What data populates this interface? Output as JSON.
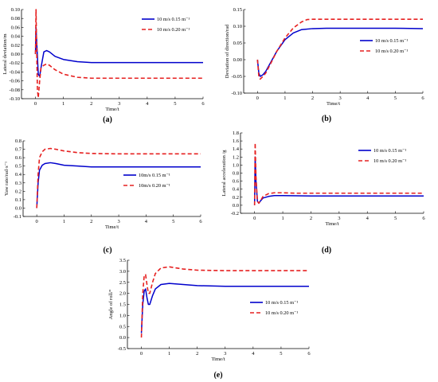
{
  "chart_data": [
    {
      "panel": "(a)",
      "type": "line",
      "xlabel": "Time/t",
      "ylabel": "Lateral deviation/m",
      "xlim": [
        -0.5,
        6
      ],
      "ylim": [
        -0.1,
        0.1
      ],
      "xticks": [
        0,
        1,
        2,
        3,
        4,
        5,
        6
      ],
      "yticks": [
        -0.1,
        -0.08,
        -0.06,
        -0.04,
        -0.02,
        0.0,
        0.02,
        0.04,
        0.06,
        0.08,
        0.1
      ],
      "ytick_labels": [
        "-0.10",
        "-0.08",
        "-0.06",
        "-0.04",
        "-0.02",
        "0.00",
        "0.02",
        "0.04",
        "0.06",
        "0.08",
        "0.10"
      ],
      "legend_pos": "top-right",
      "series": [
        {
          "name": "10 m/s 0.15 m⁻¹",
          "color": "#0000cc",
          "dash": "solid",
          "x": [
            0,
            0.02,
            0.05,
            0.1,
            0.15,
            0.2,
            0.3,
            0.4,
            0.5,
            0.7,
            1.0,
            1.5,
            2,
            3,
            4,
            5,
            6
          ],
          "y": [
            0,
            0.06,
            0.02,
            -0.045,
            -0.05,
            -0.03,
            0.005,
            0.008,
            0.005,
            -0.005,
            -0.012,
            -0.017,
            -0.019,
            -0.019,
            -0.019,
            -0.019,
            -0.019
          ]
        },
        {
          "name": "10 m/s 0.20 m⁻¹",
          "color": "#e62020",
          "dash": "dashed",
          "x": [
            0,
            0.02,
            0.04,
            0.07,
            0.1,
            0.15,
            0.2,
            0.3,
            0.4,
            0.5,
            0.7,
            1.0,
            1.5,
            2,
            3,
            4,
            5,
            6
          ],
          "y": [
            0,
            0.1,
            0.02,
            -0.08,
            -0.098,
            -0.06,
            -0.03,
            -0.025,
            -0.022,
            -0.025,
            -0.035,
            -0.045,
            -0.052,
            -0.054,
            -0.054,
            -0.054,
            -0.054,
            -0.054
          ]
        }
      ]
    },
    {
      "panel": "(b)",
      "type": "line",
      "xlabel": "Time/t",
      "ylabel": "Deviation of direction/rad",
      "xlim": [
        -0.5,
        6
      ],
      "ylim": [
        -0.1,
        0.15
      ],
      "xticks": [
        0,
        1,
        2,
        3,
        4,
        5,
        6
      ],
      "yticks": [
        -0.1,
        -0.05,
        0.0,
        0.05,
        0.1,
        0.15
      ],
      "ytick_labels": [
        "-0.10",
        "-0.05",
        "0.00",
        "0.05",
        "0.10",
        "0.15"
      ],
      "legend_pos": "right",
      "series": [
        {
          "name": "10 m/s 0.15 m⁻¹",
          "color": "#0000cc",
          "dash": "solid",
          "x": [
            0,
            0.05,
            0.1,
            0.2,
            0.3,
            0.5,
            0.7,
            1.0,
            1.3,
            1.6,
            2,
            2.5,
            3,
            4,
            5,
            6
          ],
          "y": [
            0,
            -0.04,
            -0.05,
            -0.045,
            -0.035,
            -0.005,
            0.025,
            0.06,
            0.08,
            0.09,
            0.093,
            0.094,
            0.094,
            0.094,
            0.094,
            0.093
          ]
        },
        {
          "name": "10 m/s 0.20 m⁻¹",
          "color": "#e62020",
          "dash": "dashed",
          "x": [
            0,
            0.05,
            0.1,
            0.2,
            0.3,
            0.5,
            0.7,
            1.0,
            1.3,
            1.6,
            1.8,
            2,
            2.5,
            3,
            4,
            5,
            6
          ],
          "y": [
            0,
            -0.05,
            -0.058,
            -0.05,
            -0.04,
            -0.008,
            0.025,
            0.065,
            0.095,
            0.113,
            0.12,
            0.121,
            0.121,
            0.121,
            0.121,
            0.121,
            0.121
          ]
        }
      ]
    },
    {
      "panel": "(c)",
      "type": "line",
      "xlabel": "Time/t",
      "ylabel": "Yaw rate/rad·s⁻¹",
      "xlim": [
        -0.5,
        6
      ],
      "ylim": [
        -0.1,
        0.8
      ],
      "xticks": [
        0,
        1,
        2,
        3,
        4,
        5,
        6
      ],
      "yticks": [
        -0.1,
        0.0,
        0.1,
        0.2,
        0.3,
        0.4,
        0.5,
        0.6,
        0.7,
        0.8
      ],
      "ytick_labels": [
        "-0.1",
        "0.0",
        "0.1",
        "0.2",
        "0.3",
        "0.4",
        "0.5",
        "0.6",
        "0.7",
        "0.8"
      ],
      "legend_pos": "right",
      "series": [
        {
          "name": "10m/s 0.15 m⁻¹",
          "color": "#0000cc",
          "dash": "solid",
          "x": [
            0,
            0.05,
            0.1,
            0.2,
            0.3,
            0.5,
            0.7,
            1.0,
            1.5,
            2,
            3,
            4,
            5,
            6
          ],
          "y": [
            0,
            0.3,
            0.45,
            0.51,
            0.53,
            0.54,
            0.53,
            0.51,
            0.5,
            0.49,
            0.49,
            0.49,
            0.49,
            0.49
          ]
        },
        {
          "name": "10m/s 0.20 m⁻¹",
          "color": "#e62020",
          "dash": "dashed",
          "x": [
            0,
            0.05,
            0.1,
            0.2,
            0.3,
            0.5,
            0.7,
            1.0,
            1.5,
            2,
            3,
            4,
            5,
            6
          ],
          "y": [
            0,
            0.4,
            0.6,
            0.67,
            0.7,
            0.71,
            0.7,
            0.68,
            0.66,
            0.65,
            0.645,
            0.645,
            0.645,
            0.645
          ]
        }
      ]
    },
    {
      "panel": "(d)",
      "type": "line",
      "xlabel": "Time/t",
      "ylabel": "Lateral acceleration /g",
      "xlim": [
        -0.5,
        6
      ],
      "ylim": [
        -0.2,
        1.8
      ],
      "xticks": [
        0,
        1,
        2,
        3,
        4,
        5,
        6
      ],
      "yticks": [
        -0.2,
        0.0,
        0.2,
        0.4,
        0.6,
        0.8,
        1.0,
        1.2,
        1.4,
        1.6,
        1.8
      ],
      "ytick_labels": [
        "-0.2",
        "0.0",
        "0.2",
        "0.4",
        "0.6",
        "0.8",
        "1.0",
        "1.2",
        "1.4",
        "1.6",
        "1.8"
      ],
      "legend_pos": "top-right",
      "series": [
        {
          "name": "10 m/s 0.15 m⁻¹",
          "color": "#0000cc",
          "dash": "solid",
          "x": [
            0,
            0.02,
            0.05,
            0.1,
            0.15,
            0.2,
            0.3,
            0.5,
            0.7,
            1.0,
            1.5,
            2,
            3,
            4,
            5,
            6
          ],
          "y": [
            0,
            1.2,
            0.6,
            0.1,
            0.05,
            0.1,
            0.18,
            0.22,
            0.24,
            0.24,
            0.235,
            0.23,
            0.23,
            0.23,
            0.23,
            0.23
          ]
        },
        {
          "name": "10 m/s 0.20 m⁻¹",
          "color": "#e62020",
          "dash": "dashed",
          "x": [
            0,
            0.02,
            0.05,
            0.1,
            0.15,
            0.2,
            0.3,
            0.5,
            0.7,
            1.0,
            1.5,
            2,
            3,
            4,
            5,
            6
          ],
          "y": [
            0,
            1.55,
            0.7,
            0.1,
            0.05,
            0.1,
            0.22,
            0.29,
            0.31,
            0.31,
            0.3,
            0.3,
            0.3,
            0.3,
            0.3,
            0.3
          ]
        }
      ]
    },
    {
      "panel": "(e)",
      "type": "line",
      "xlabel": "Time/t",
      "ylabel": "Angle of roll/°",
      "xlim": [
        -0.5,
        6
      ],
      "ylim": [
        -0.5,
        3.5
      ],
      "xticks": [
        0,
        1,
        2,
        3,
        4,
        5,
        6
      ],
      "yticks": [
        -0.5,
        0.0,
        0.5,
        1.0,
        1.5,
        2.0,
        2.5,
        3.0,
        3.5
      ],
      "ytick_labels": [
        "-0.5",
        "0.0",
        "0.5",
        "1.0",
        "1.5",
        "2.0",
        "2.5",
        "3.0",
        "3.5"
      ],
      "legend_pos": "right",
      "series": [
        {
          "name": "10 m/s 0.15 m⁻¹",
          "color": "#0000cc",
          "dash": "solid",
          "x": [
            0,
            0.05,
            0.1,
            0.15,
            0.2,
            0.25,
            0.3,
            0.4,
            0.5,
            0.7,
            1.0,
            1.5,
            2,
            3,
            4,
            5,
            6
          ],
          "y": [
            0.2,
            1.5,
            2.1,
            2.2,
            1.8,
            1.5,
            1.5,
            1.9,
            2.2,
            2.4,
            2.45,
            2.4,
            2.35,
            2.32,
            2.32,
            2.32,
            2.32
          ]
        },
        {
          "name": "10 m/s 0.20 m⁻¹",
          "color": "#e62020",
          "dash": "dashed",
          "x": [
            0,
            0.05,
            0.1,
            0.15,
            0.2,
            0.25,
            0.3,
            0.4,
            0.5,
            0.7,
            1.0,
            1.5,
            2,
            3,
            4,
            5,
            6
          ],
          "y": [
            0,
            2.0,
            2.8,
            2.85,
            2.4,
            2.0,
            2.0,
            2.5,
            2.9,
            3.15,
            3.2,
            3.1,
            3.05,
            3.03,
            3.03,
            3.03,
            3.03
          ]
        }
      ]
    }
  ]
}
